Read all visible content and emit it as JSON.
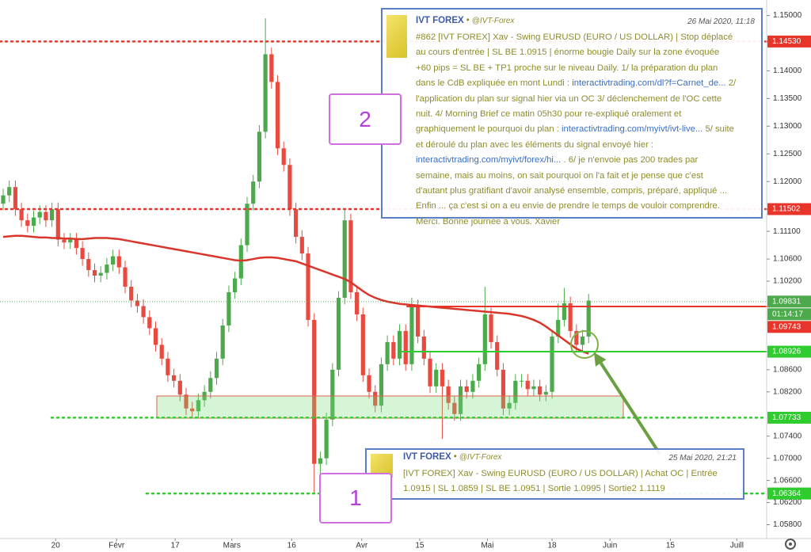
{
  "chart_data": {
    "type": "candlestick",
    "xlim": [
      -0.52,
      125.19
    ],
    "ylim": [
      1.0555,
      1.1528
    ],
    "xticks": [
      {
        "value": 8.6,
        "label": "20"
      },
      {
        "value": 18.6,
        "label": "Févr"
      },
      {
        "value": 28.2,
        "label": "17"
      },
      {
        "value": 37.5,
        "label": "Mars"
      },
      {
        "value": 47.3,
        "label": "16"
      },
      {
        "value": 58.8,
        "label": "Avr"
      },
      {
        "value": 68.3,
        "label": "15"
      },
      {
        "value": 79.4,
        "label": "Mai"
      },
      {
        "value": 90,
        "label": "18"
      },
      {
        "value": 99.5,
        "label": "Juin"
      },
      {
        "value": 109.4,
        "label": "15"
      },
      {
        "value": 120.3,
        "label": "Juill"
      }
    ],
    "yticks": [
      {
        "value": 1.15,
        "label": "1.15000"
      },
      {
        "value": 1.14,
        "label": "1.14000"
      },
      {
        "value": 1.135,
        "label": "1.13500"
      },
      {
        "value": 1.13,
        "label": "1.13000"
      },
      {
        "value": 1.125,
        "label": "1.12500"
      },
      {
        "value": 1.12,
        "label": "1.12000"
      },
      {
        "value": 1.111,
        "label": "1.11100"
      },
      {
        "value": 1.106,
        "label": "1.10600"
      },
      {
        "value": 1.102,
        "label": "1.10200"
      },
      {
        "value": 1.086,
        "label": "1.08600"
      },
      {
        "value": 1.082,
        "label": "1.08200"
      },
      {
        "value": 1.074,
        "label": "1.07400"
      },
      {
        "value": 1.07,
        "label": "1.07000"
      },
      {
        "value": 1.066,
        "label": "1.06600"
      },
      {
        "value": 1.062,
        "label": "1.06200"
      },
      {
        "value": 1.058,
        "label": "1.05800"
      }
    ],
    "up_color": "#4caa4c",
    "down_color": "#e84a3f",
    "open": [
      1.116,
      1.1175,
      1.119,
      1.115,
      1.113,
      1.112,
      1.1135,
      1.1145,
      1.113,
      1.115,
      1.1095,
      1.109,
      1.1095,
      1.108,
      1.106,
      1.104,
      1.103,
      1.1035,
      1.105,
      1.1065,
      1.1045,
      1.101,
      1.0985,
      1.0975,
      1.0955,
      1.0935,
      1.0905,
      1.088,
      1.085,
      1.084,
      1.0815,
      1.079,
      1.0785,
      1.0805,
      1.082,
      1.0845,
      1.088,
      1.094,
      1.1,
      1.1025,
      1.1085,
      1.116,
      1.12,
      1.129,
      1.143,
      1.138,
      1.126,
      1.123,
      1.115,
      1.11,
      1.107,
      1.095,
      1.069,
      1.07,
      1.077,
      1.086,
      1.099,
      1.113,
      1.1,
      1.096,
      1.085,
      1.082,
      1.0795,
      1.087,
      1.091,
      1.088,
      1.093,
      1.087,
      1.0975,
      1.092,
      1.088,
      1.083,
      1.086,
      1.083,
      1.08,
      1.078,
      1.083,
      1.082,
      1.084,
      1.087,
      1.096,
      1.091,
      1.086,
      1.079,
      1.08,
      1.084,
      1.084,
      1.0825,
      1.083,
      1.0815,
      1.082,
      1.092,
      1.095,
      1.098,
      1.093,
      1.0905,
      1.092
    ],
    "high": [
      1.1187,
      1.1202,
      1.1202,
      1.1162,
      1.1142,
      1.1147,
      1.1157,
      1.1157,
      1.1162,
      1.1162,
      1.1107,
      1.1107,
      1.1107,
      1.1092,
      1.1072,
      1.1052,
      1.1047,
      1.1062,
      1.1077,
      1.1077,
      1.1057,
      1.1022,
      1.0997,
      1.0987,
      1.0967,
      1.0947,
      1.0917,
      1.0892,
      1.0862,
      1.0852,
      1.0827,
      1.0802,
      1.0817,
      1.0832,
      1.0857,
      1.0892,
      1.0952,
      1.1012,
      1.1037,
      1.1097,
      1.1172,
      1.1212,
      1.1302,
      1.1495,
      1.1442,
      1.1392,
      1.1272,
      1.1242,
      1.1162,
      1.1112,
      1.1082,
      1.0962,
      1.0712,
      1.0782,
      1.0872,
      1.1002,
      1.1152,
      1.1142,
      1.1012,
      1.0972,
      1.0862,
      1.0832,
      1.0882,
      1.0922,
      1.0922,
      1.0942,
      1.0942,
      1.099,
      1.0987,
      1.0932,
      1.0892,
      1.0872,
      1.0872,
      1.0842,
      1.0812,
      1.0842,
      1.0842,
      1.0852,
      1.0882,
      1.101,
      1.0972,
      1.0922,
      1.0872,
      1.0812,
      1.0852,
      1.0852,
      1.0852,
      1.0842,
      1.0842,
      1.0832,
      1.0932,
      1.098,
      1.1008,
      1.0992,
      1.0942,
      1.0932,
      1.0997
    ],
    "low": [
      1.1148,
      1.1163,
      1.1138,
      1.1118,
      1.1108,
      1.1108,
      1.1123,
      1.1118,
      1.1118,
      1.1083,
      1.1078,
      1.1078,
      1.1068,
      1.1048,
      1.1028,
      1.1018,
      1.1018,
      1.1023,
      1.1038,
      1.1033,
      1.0998,
      1.0973,
      1.0963,
      1.0943,
      1.0923,
      1.0893,
      1.0868,
      1.0838,
      1.0828,
      1.0803,
      1.0778,
      1.0773,
      1.0773,
      1.0793,
      1.0808,
      1.0833,
      1.0868,
      1.0928,
      1.0988,
      1.1013,
      1.1073,
      1.1148,
      1.1188,
      1.1278,
      1.1368,
      1.1248,
      1.1218,
      1.1138,
      1.1088,
      1.1058,
      1.0938,
      1.0636,
      1.066,
      1.0688,
      1.0758,
      1.0848,
      1.0978,
      1.0988,
      1.0948,
      1.0838,
      1.0808,
      1.0783,
      1.0783,
      1.0858,
      1.0868,
      1.0868,
      1.0858,
      1.0858,
      1.0908,
      1.0868,
      1.0818,
      1.0818,
      1.0735,
      1.0788,
      1.0768,
      1.0768,
      1.0808,
      1.0808,
      1.0828,
      1.0858,
      1.0898,
      1.0848,
      1.0778,
      1.0778,
      1.0788,
      1.0828,
      1.0813,
      1.0813,
      1.0803,
      1.0803,
      1.0808,
      1.0908,
      1.0938,
      1.0918,
      1.0893,
      1.0893,
      1.0908
    ],
    "close": [
      1.1175,
      1.119,
      1.115,
      1.113,
      1.112,
      1.1135,
      1.1145,
      1.113,
      1.115,
      1.1095,
      1.109,
      1.1095,
      1.108,
      1.106,
      1.104,
      1.103,
      1.1035,
      1.105,
      1.1065,
      1.1045,
      1.101,
      1.0985,
      1.0975,
      1.0955,
      1.0935,
      1.0905,
      1.088,
      1.085,
      1.084,
      1.0815,
      1.079,
      1.0785,
      1.0805,
      1.082,
      1.0845,
      1.088,
      1.094,
      1.1,
      1.1025,
      1.1085,
      1.116,
      1.12,
      1.129,
      1.143,
      1.138,
      1.126,
      1.123,
      1.115,
      1.11,
      1.107,
      1.095,
      1.069,
      1.07,
      1.077,
      1.086,
      1.099,
      1.113,
      1.1,
      1.096,
      1.085,
      1.082,
      1.0795,
      1.087,
      1.091,
      1.088,
      1.093,
      1.087,
      1.0975,
      1.092,
      1.088,
      1.083,
      1.086,
      1.083,
      1.08,
      1.078,
      1.083,
      1.082,
      1.084,
      1.087,
      1.096,
      1.091,
      1.086,
      1.079,
      1.08,
      1.084,
      1.084,
      1.0825,
      1.083,
      1.0815,
      1.082,
      1.092,
      1.095,
      1.098,
      1.093,
      1.0905,
      1.092,
      1.0985
    ],
    "moving_average": {
      "color": "#d9362b",
      "values": [
        1.11,
        1.1101,
        1.1102,
        1.1102,
        1.1101,
        1.11,
        1.1099,
        1.1099,
        1.1098,
        1.1098,
        1.1097,
        1.1097,
        1.1096,
        1.1096,
        1.1097,
        1.1098,
        1.1098,
        1.1098,
        1.1097,
        1.1096,
        1.1094,
        1.1092,
        1.109,
        1.1088,
        1.1086,
        1.1084,
        1.1082,
        1.108,
        1.1078,
        1.1076,
        1.1074,
        1.1072,
        1.107,
        1.1068,
        1.1066,
        1.1064,
        1.1062,
        1.106,
        1.1058,
        1.1057,
        1.1058,
        1.106,
        1.1062,
        1.1063,
        1.1063,
        1.1062,
        1.106,
        1.1058,
        1.1056,
        1.1052,
        1.1048,
        1.1044,
        1.104,
        1.1036,
        1.1032,
        1.1028,
        1.1024,
        1.1018,
        1.101,
        1.1002,
        1.0995,
        1.099,
        1.0986,
        1.0983,
        1.0981,
        1.0979,
        1.0978,
        1.0977,
        1.0976,
        1.0975,
        1.0974,
        1.0973,
        1.0972,
        1.0971,
        1.097,
        1.0969,
        1.0968,
        1.0967,
        1.0966,
        1.0965,
        1.0964,
        1.0963,
        1.0962,
        1.0961,
        1.0959,
        1.0957,
        1.0954,
        1.095,
        1.0945,
        1.0938,
        1.093,
        1.0922,
        1.0914,
        1.0906,
        1.0898,
        1.0893,
        1.0889
      ]
    },
    "levels": [
      {
        "value": 1.1453,
        "label": "1.14530",
        "color": "#e8352b",
        "style": "dotted"
      },
      {
        "value": 1.11502,
        "label": "1.11502",
        "color": "#e8352b",
        "style": "dotted"
      },
      {
        "value": 1.09743,
        "label": "1.09743",
        "color": "#e8352b",
        "style": "solid"
      },
      {
        "value": 1.08926,
        "label": "1.08926",
        "color": "#2ecc2e",
        "style": "solid"
      },
      {
        "value": 1.07733,
        "label": "1.07733",
        "color": "#2ecc2e",
        "style": "dotted"
      },
      {
        "value": 1.06364,
        "label": "1.06364",
        "color": "#2ecc2e",
        "style": "dotted"
      }
    ],
    "current": {
      "value": 1.09831,
      "label": "1.09831",
      "color": "#4caa4c",
      "countdown": "01:14:17"
    }
  },
  "tweets": [
    {
      "name": "IVT FOREX",
      "separator": "•",
      "handle": "@IVT-Forex",
      "date": "26 Mai 2020, 11:18",
      "lines": [
        [
          "#862 [IVT FOREX] Xav - Swing EURUSD (EURO / US DOLLAR) | Stop déplacé"
        ],
        [
          "au cours d'entrée | SL BE 1.0915 | énorme bougie Daily sur la zone évoquée"
        ],
        [
          "+60 pips = SL BE + TP1 proche sur le niveau Daily. 1/ la préparation du plan"
        ],
        [
          "dans le CdB expliquée en mont Lundi : ",
          {
            "link": "interactivtrading.com/dl?f=Carnet_de..."
          },
          " 2/"
        ],
        [
          "l'application du plan sur signal hier via un OC 3/ déclenchement de l'OC cette"
        ],
        [
          "nuit. 4/ Morning Brief ce matin 05h30 pour re-expliqué oralement et"
        ],
        [
          "graphiquement le pourquoi du plan : ",
          {
            "link": "interactivtrading.com/myivt/ivt-live..."
          },
          " 5/ suite"
        ],
        [
          "et déroulé du plan avec les éléments du signal envoyé hier :"
        ],
        [
          {
            "link": "interactivtrading.com/myivt/forex/hi..."
          },
          " . 6/ je n'envoie pas 200 trades par"
        ],
        [
          "semaine, mais au moins, on sait pourquoi on l'a fait et je pense que c'est"
        ],
        [
          "d'autant plus gratifiant d'avoir analysé ensemble, compris, préparé, appliqué ..."
        ],
        [
          "Enfin ... ça c'est si on a eu envie de prendre le temps de vouloir comprendre."
        ],
        [
          "Merci. Bonne journée à vous. Xavier"
        ]
      ]
    },
    {
      "name": "IVT FOREX",
      "separator": "•",
      "handle": "@IVT-Forex",
      "date": "25 Mai 2020, 21:21",
      "lines": [
        [
          "[IVT FOREX] Xav - Swing EURUSD (EURO / US DOLLAR) | Achat OC | Entrée"
        ],
        [
          "1.0915 | SL 1.0859 | SL BE 1.0951 | Sortie 1.0995 | Sortie2 1.1119"
        ]
      ]
    }
  ],
  "callouts": [
    "2",
    "1"
  ]
}
